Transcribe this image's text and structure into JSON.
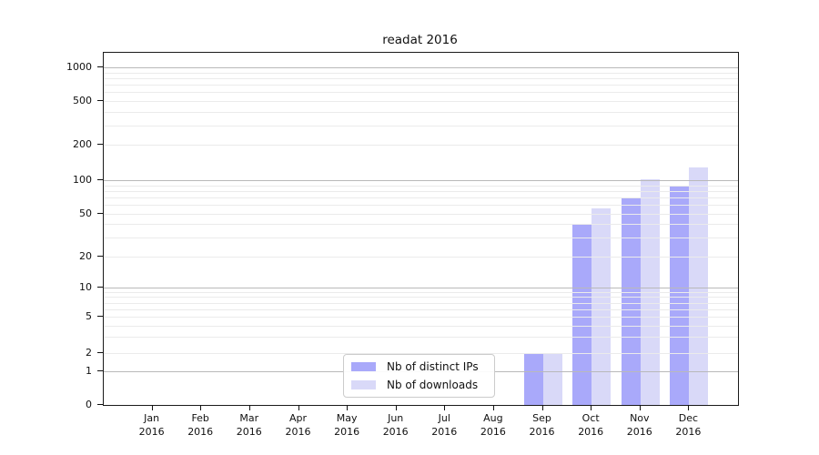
{
  "chart_data": {
    "type": "bar",
    "title": "readat 2016",
    "xlabel": "",
    "ylabel": "",
    "yscale": "symlog",
    "grid": true,
    "legend_position": "lower center",
    "x_tick_year": "2016",
    "categories": [
      "Jan",
      "Feb",
      "Mar",
      "Apr",
      "May",
      "Jun",
      "Jul",
      "Aug",
      "Sep",
      "Oct",
      "Nov",
      "Dec"
    ],
    "y_ticks": [
      0,
      1,
      2,
      5,
      10,
      20,
      50,
      100,
      200,
      500,
      1000
    ],
    "ylim": [
      0,
      1350
    ],
    "series": [
      {
        "name": "Nb of distinct IPs",
        "color": "#a9a9fa",
        "values": [
          0,
          0,
          0,
          0,
          0,
          0,
          0,
          0,
          2,
          40,
          70,
          90
        ]
      },
      {
        "name": "Nb of downloads",
        "color": "#d9d9f8",
        "values": [
          0,
          0,
          0,
          0,
          0,
          0,
          0,
          0,
          2,
          56,
          102,
          128
        ]
      }
    ],
    "colors": {
      "major_grid": "#b9b9b9",
      "minor_grid": "#ebebeb",
      "axis": "#1a1a1a"
    }
  }
}
